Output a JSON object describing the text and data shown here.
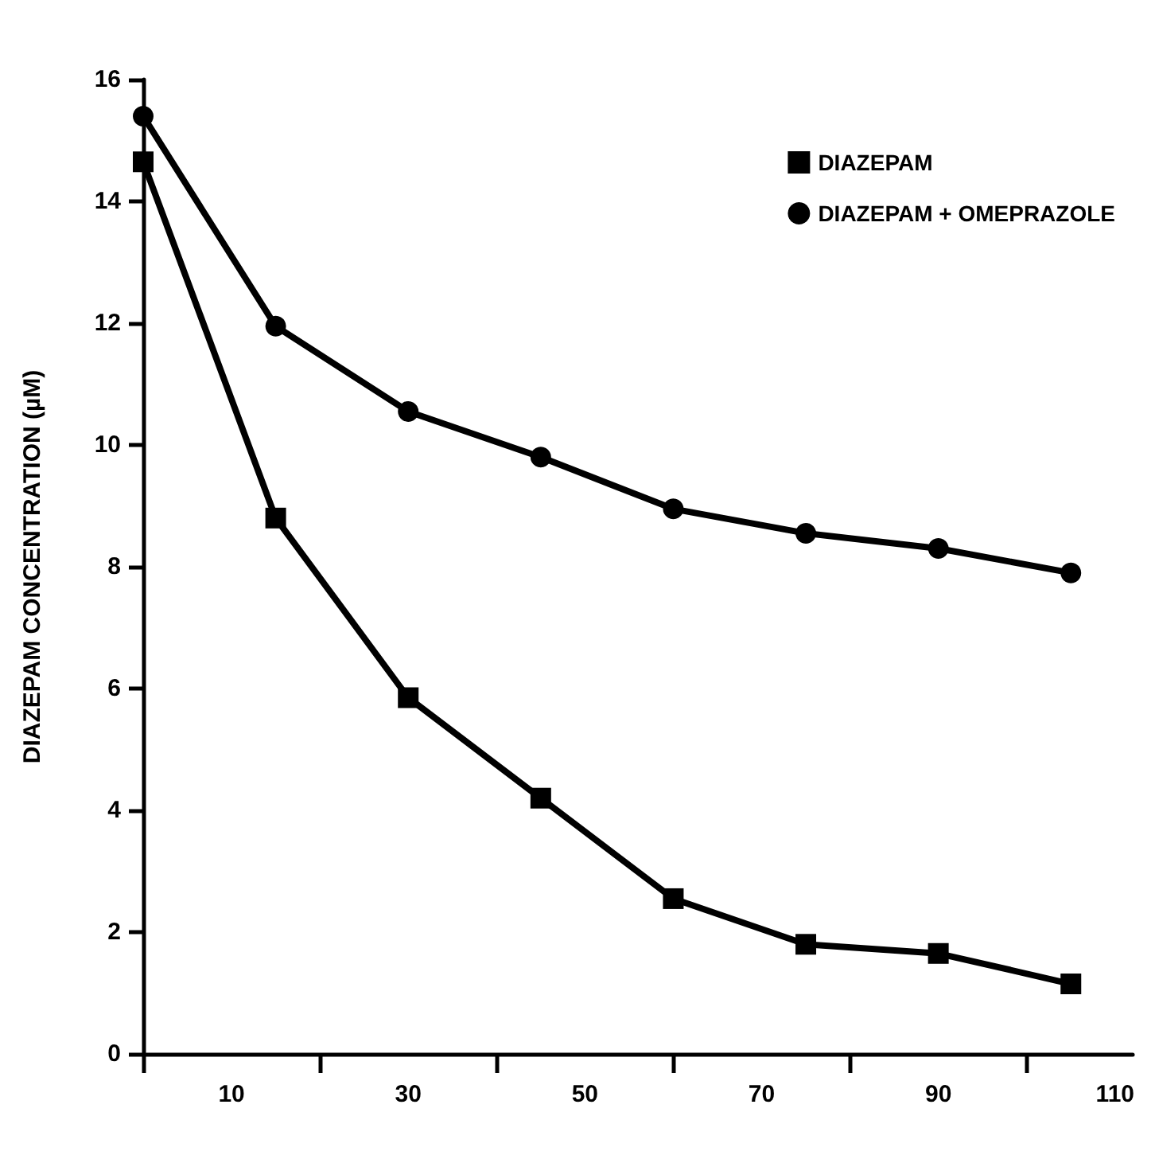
{
  "chart_data": {
    "type": "line",
    "ylabel": "DIAZEPAM CONCENTRATION (µM)",
    "xlim": [
      0,
      112
    ],
    "xticks": [
      {
        "value": 0,
        "label": null
      },
      10,
      {
        "value": 20,
        "label": null
      },
      30,
      {
        "value": 40,
        "label": null
      },
      50,
      {
        "value": 60,
        "label": null
      },
      70,
      {
        "value": 80,
        "label": null
      },
      90,
      {
        "value": 100,
        "label": null
      },
      110
    ],
    "ylim": [
      0,
      16
    ],
    "yticks": [
      0,
      2,
      4,
      6,
      8,
      10,
      12,
      14,
      16
    ],
    "x": [
      0,
      15,
      30,
      45,
      60,
      75,
      90,
      105
    ],
    "series": [
      {
        "name": "DIAZEPAM",
        "color": "#000000",
        "marker": "square",
        "values": [
          14.65,
          8.8,
          5.85,
          4.2,
          2.55,
          1.8,
          1.65,
          1.15
        ]
      },
      {
        "name": "DIAZEPAM + OMEPRAZOLE",
        "color": "#000000",
        "marker": "circle",
        "values": [
          15.4,
          11.95,
          10.55,
          9.8,
          8.95,
          8.55,
          8.3,
          7.9
        ]
      }
    ],
    "grid": false,
    "legend": "top right",
    "line_style": "solid"
  }
}
